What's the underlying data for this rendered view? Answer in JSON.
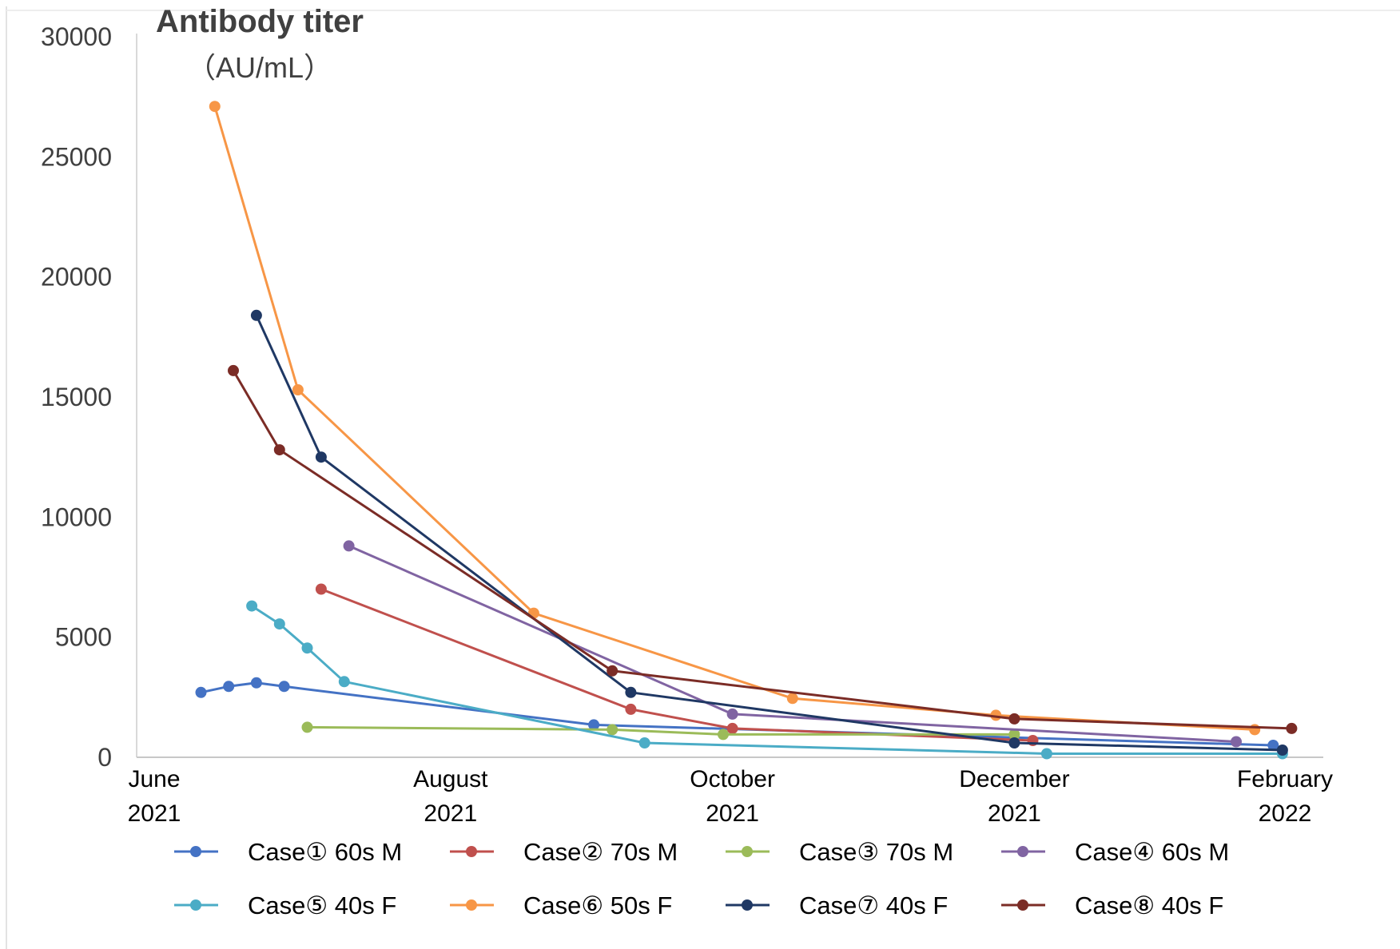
{
  "chart_data": {
    "type": "line",
    "ylabel_line1": "Antibody titer",
    "ylabel_line2": "（AU/mL）",
    "ylim": [
      0,
      30000
    ],
    "yticks": [
      0,
      5000,
      10000,
      15000,
      20000,
      25000,
      30000
    ],
    "xlim": [
      "2021-06-01",
      "2022-02-01"
    ],
    "xticks": [
      {
        "date": "2021-06-01",
        "line1": "June",
        "line2": "2021"
      },
      {
        "date": "2021-08-01",
        "line1": "August",
        "line2": "2021"
      },
      {
        "date": "2021-10-01",
        "line1": "October",
        "line2": "2021"
      },
      {
        "date": "2021-12-01",
        "line1": "December",
        "line2": "2021"
      },
      {
        "date": "2022-02-01",
        "line1": "February",
        "line2": "2022"
      }
    ],
    "grid": false,
    "legend_position": "bottom",
    "series": [
      {
        "name": "Case① 60s M",
        "color": "#4472C4",
        "points": [
          {
            "x": "2021-06-08",
            "y": 2700
          },
          {
            "x": "2021-06-14",
            "y": 2950
          },
          {
            "x": "2021-06-20",
            "y": 3100
          },
          {
            "x": "2021-06-26",
            "y": 2950
          },
          {
            "x": "2021-09-01",
            "y": 1350
          },
          {
            "x": "2022-01-26",
            "y": 500
          }
        ]
      },
      {
        "name": "Case② 70s M",
        "color": "#C0504D",
        "points": [
          {
            "x": "2021-07-04",
            "y": 7000
          },
          {
            "x": "2021-09-09",
            "y": 2000
          },
          {
            "x": "2021-10-01",
            "y": 1200
          },
          {
            "x": "2021-12-05",
            "y": 700
          }
        ]
      },
      {
        "name": "Case③ 70s M",
        "color": "#9BBB59",
        "points": [
          {
            "x": "2021-07-01",
            "y": 1250
          },
          {
            "x": "2021-09-05",
            "y": 1150
          },
          {
            "x": "2021-09-29",
            "y": 950
          },
          {
            "x": "2021-12-01",
            "y": 950
          }
        ]
      },
      {
        "name": "Case④ 60s M",
        "color": "#8064A2",
        "points": [
          {
            "x": "2021-07-10",
            "y": 8800
          },
          {
            "x": "2021-10-01",
            "y": 1800
          },
          {
            "x": "2022-01-18",
            "y": 650
          }
        ]
      },
      {
        "name": "Case⑤ 40s F",
        "color": "#4BACC6",
        "points": [
          {
            "x": "2021-06-19",
            "y": 6300
          },
          {
            "x": "2021-06-25",
            "y": 5550
          },
          {
            "x": "2021-07-01",
            "y": 4550
          },
          {
            "x": "2021-07-09",
            "y": 3150
          },
          {
            "x": "2021-09-12",
            "y": 600
          },
          {
            "x": "2021-12-08",
            "y": 150
          },
          {
            "x": "2022-01-28",
            "y": 150
          }
        ]
      },
      {
        "name": "Case⑥ 50s F",
        "color": "#F79646",
        "points": [
          {
            "x": "2021-06-11",
            "y": 27100
          },
          {
            "x": "2021-06-29",
            "y": 15300
          },
          {
            "x": "2021-08-19",
            "y": 6000
          },
          {
            "x": "2021-10-14",
            "y": 2450
          },
          {
            "x": "2021-11-27",
            "y": 1750
          },
          {
            "x": "2022-01-22",
            "y": 1150
          }
        ]
      },
      {
        "name": "Case⑦ 40s F",
        "color": "#1F3864",
        "points": [
          {
            "x": "2021-06-20",
            "y": 18400
          },
          {
            "x": "2021-07-04",
            "y": 12500
          },
          {
            "x": "2021-09-09",
            "y": 2700
          },
          {
            "x": "2021-12-01",
            "y": 600
          },
          {
            "x": "2022-01-28",
            "y": 300
          }
        ]
      },
      {
        "name": "Case⑧ 40s F",
        "color": "#7B2C26",
        "points": [
          {
            "x": "2021-06-15",
            "y": 16100
          },
          {
            "x": "2021-06-25",
            "y": 12800
          },
          {
            "x": "2021-09-05",
            "y": 3600
          },
          {
            "x": "2021-12-01",
            "y": 1600
          },
          {
            "x": "2022-01-30",
            "y": 1200
          }
        ]
      }
    ]
  }
}
